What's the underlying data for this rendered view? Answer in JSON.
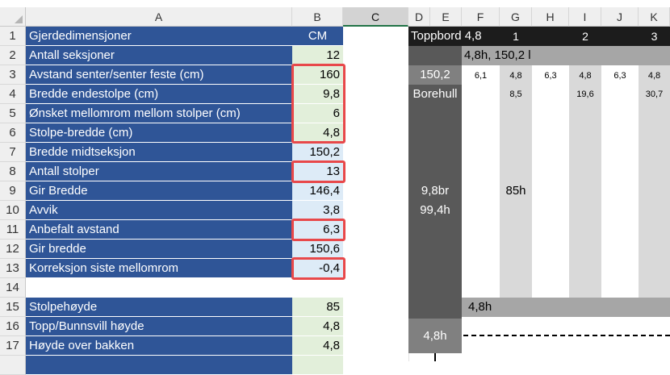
{
  "columns": [
    "A",
    "B",
    "C",
    "D",
    "E",
    "F",
    "G",
    "H",
    "I",
    "J",
    "K"
  ],
  "rows": [
    {
      "n": "1",
      "label": "Gjerdedimensjoner",
      "value": "CM",
      "style": "header"
    },
    {
      "n": "2",
      "label": "Antall seksjoner",
      "value": "12",
      "style": "green"
    },
    {
      "n": "3",
      "label": "Avstand senter/senter feste (cm)",
      "value": "160",
      "style": "green",
      "highlight": true
    },
    {
      "n": "4",
      "label": "Bredde endestolpe (cm)",
      "value": "9,8",
      "style": "green",
      "highlight": true
    },
    {
      "n": "5",
      "label": "Ønsket mellomrom mellom stolper (cm)",
      "value": "6",
      "style": "green",
      "highlight": true
    },
    {
      "n": "6",
      "label": "Stolpe-bredde (cm)",
      "value": "4,8",
      "style": "green",
      "highlight": true
    },
    {
      "n": "7",
      "label": "Bredde midtseksjon",
      "value": "150,2",
      "style": "lblue"
    },
    {
      "n": "8",
      "label": "Antall stolper",
      "value": "13",
      "style": "lblue",
      "highlight": true
    },
    {
      "n": "9",
      "label": "Gir Bredde",
      "value": "146,4",
      "style": "lblue"
    },
    {
      "n": "10",
      "label": "Avvik",
      "value": "3,8",
      "style": "lblue"
    },
    {
      "n": "11",
      "label": "Anbefalt avstand",
      "value": "6,3",
      "style": "lblue",
      "highlight": true
    },
    {
      "n": "12",
      "label": "Gir bredde",
      "value": "150,6",
      "style": "lblue"
    },
    {
      "n": "13",
      "label": "Korreksjon siste mellomrom",
      "value": "-0,4",
      "style": "lblue",
      "highlight": true
    },
    {
      "n": "14",
      "label": "",
      "value": "",
      "style": "empty"
    },
    {
      "n": "15",
      "label": "Stolpehøyde",
      "value": "85",
      "style": "green"
    },
    {
      "n": "16",
      "label": "Topp/Bunnsvill høyde",
      "value": "4,8",
      "style": "green"
    },
    {
      "n": "17",
      "label": "Høyde over bakken",
      "value": "4,8",
      "style": "green"
    }
  ],
  "drawing": {
    "toppbord_label": "Toppbord 4,8",
    "post_numbers": [
      "1",
      "2",
      "3"
    ],
    "top_rail_label": "4,8h, 150,2 l",
    "width_label": "150,2",
    "borehull_label": "Borehull",
    "gap_values": [
      "6,1",
      "4,8",
      "6,3",
      "4,8",
      "6,3",
      "4,8"
    ],
    "hole_positions": [
      "8,5",
      "19,6",
      "30,7"
    ],
    "end_post_width": "9,8br",
    "end_post_height": "99,4h",
    "post_height": "85h",
    "bottom_rail_label": "4,8h",
    "ground_label": "4,8h"
  }
}
